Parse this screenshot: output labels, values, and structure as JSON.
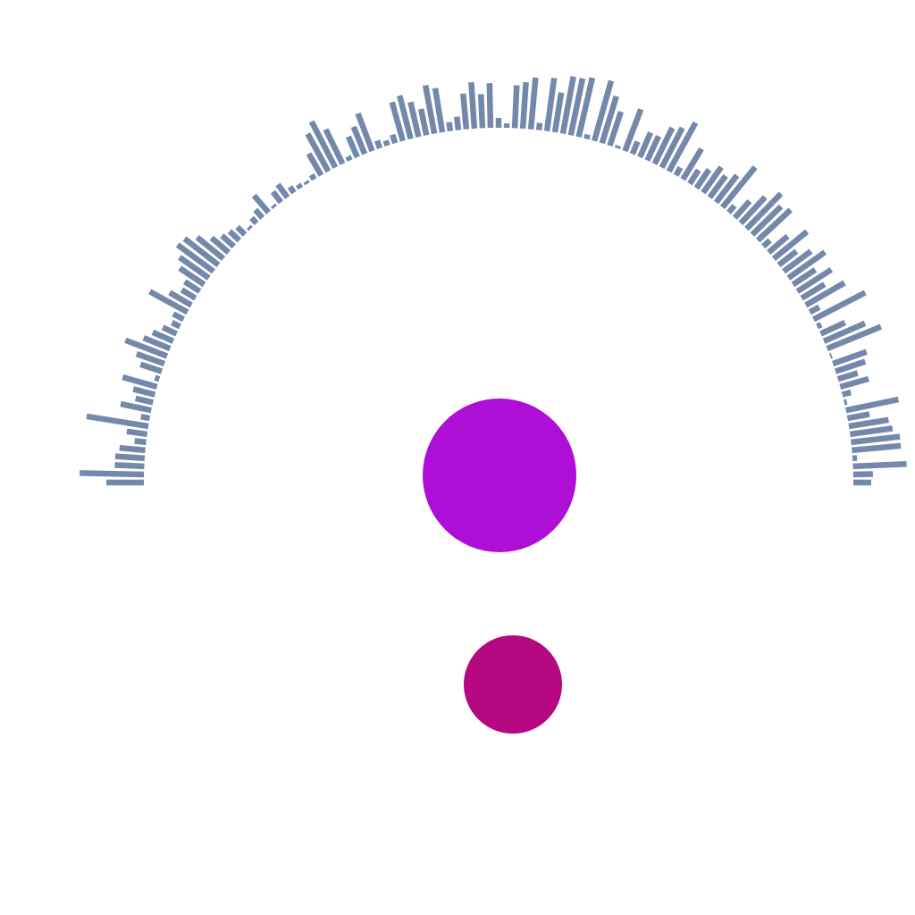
{
  "colors": {
    "background": "#ffffff",
    "bars": "#7488ab",
    "circle_large": "#ad0fd6",
    "circle_small": "#b5077f"
  },
  "chart_data": [
    {
      "type": "radial-bar",
      "arc_span_degrees": [
        -90,
        90
      ],
      "values": [
        42,
        72,
        33,
        33,
        29,
        13,
        23,
        70,
        10,
        35,
        20,
        25,
        40,
        5,
        25,
        33,
        50,
        32,
        25,
        17,
        10,
        13,
        48,
        28,
        18,
        20,
        33,
        40,
        50,
        48,
        38,
        25,
        18,
        15,
        12,
        3,
        8,
        12,
        25,
        3,
        15,
        18,
        8,
        5,
        3,
        6,
        28,
        48,
        58,
        43,
        5,
        25,
        33,
        45,
        9,
        6,
        10,
        45,
        50,
        40,
        30,
        55,
        50,
        10,
        15,
        40,
        52,
        38,
        50,
        11,
        5,
        48,
        52,
        58,
        8,
        60,
        45,
        65,
        65,
        68,
        5,
        70,
        55,
        40,
        3,
        50,
        15,
        30,
        30,
        45,
        50,
        62,
        10,
        40,
        18,
        25,
        35,
        30,
        38,
        58,
        10,
        25,
        40,
        55,
        45,
        50,
        10,
        28,
        48,
        25,
        38,
        50,
        30,
        45,
        30,
        50,
        12,
        65,
        5,
        30,
        50,
        65,
        2,
        40,
        35,
        23,
        33,
        10,
        3,
        60,
        25,
        45,
        48,
        55,
        55,
        5,
        60,
        22,
        20
      ],
      "ylim": [
        0,
        75
      ]
    },
    {
      "type": "scatter",
      "points": [
        {
          "x": 559,
          "y": 532,
          "size": 86
        },
        {
          "x": 574,
          "y": 766,
          "size": 55
        }
      ]
    }
  ]
}
